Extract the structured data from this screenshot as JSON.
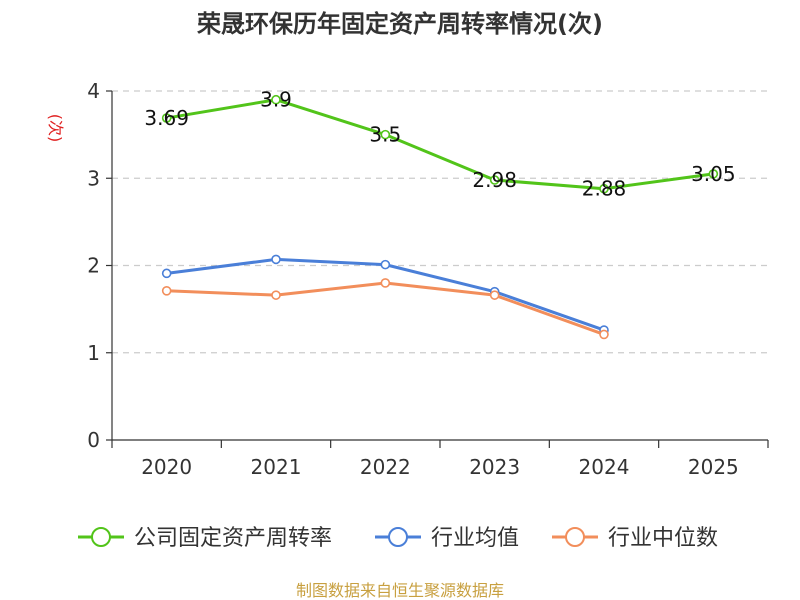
{
  "chart_data": {
    "type": "line",
    "title": "荣晟环保历年固定资产周转率情况(次)",
    "ylabel": "(次)",
    "xlabel": "",
    "categories": [
      "2020",
      "2021",
      "2022",
      "2023",
      "2024",
      "2025"
    ],
    "ylim": [
      0,
      4
    ],
    "yticks": [
      "0",
      "1",
      "2",
      "3",
      "4"
    ],
    "grid": true,
    "legend_position": "bottom",
    "series": [
      {
        "name": "公司固定资产周转率",
        "color": "#52c41a",
        "values": [
          3.69,
          3.9,
          3.5,
          2.98,
          2.88,
          3.05
        ],
        "labels": [
          "3.69",
          "3.9",
          "3.5",
          "2.98",
          "2.88",
          "3.05"
        ]
      },
      {
        "name": "行业均值",
        "color": "#4a7fd8",
        "values": [
          1.91,
          2.07,
          2.01,
          1.7,
          1.26,
          null
        ]
      },
      {
        "name": "行业中位数",
        "color": "#f28e5b",
        "values": [
          1.71,
          1.66,
          1.8,
          1.66,
          1.21,
          null
        ]
      }
    ]
  },
  "source": "制图数据来自恒生聚源数据库"
}
